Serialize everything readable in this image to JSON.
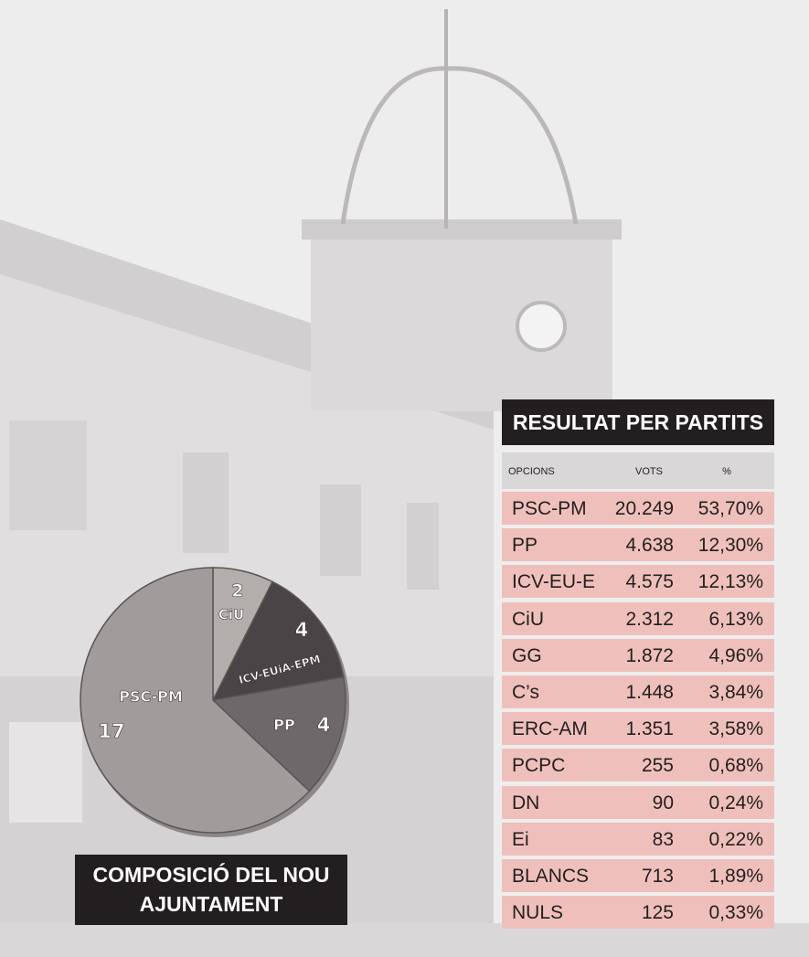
{
  "chart_data": {
    "type": "pie",
    "categories": [
      "CiU",
      "ICV-EUiA-EPM",
      "PP",
      "PSC-PM"
    ],
    "values": [
      2,
      4,
      4,
      17
    ],
    "colors": [
      "#b3adac",
      "#4a4446",
      "#6f686a",
      "#a29b9c"
    ],
    "caption": "COMPOSICIÓ DEL NOU AJUNTAMENT"
  },
  "table": {
    "title": "RESULTAT PER PARTITS",
    "header": [
      "OPCIONS",
      "VOTS",
      "%"
    ],
    "rows": [
      [
        "PSC-PM",
        "20.249",
        "53,70%"
      ],
      [
        "PP",
        "4.638",
        "12,30%"
      ],
      [
        "ICV-EU-E",
        "4.575",
        "12,13%"
      ],
      [
        "CiU",
        "2.312",
        "6,13%"
      ],
      [
        "GG",
        "1.872",
        "4,96%"
      ],
      [
        "C’s",
        "1.448",
        "3,84%"
      ],
      [
        "ERC-AM",
        "1.351",
        "3,58%"
      ],
      [
        "PCPC",
        "255",
        "0,68%"
      ],
      [
        "DN",
        "90",
        "0,24%"
      ],
      [
        "Ei",
        "83",
        "0,22%"
      ],
      [
        "BLANCS",
        "713",
        "1,89%"
      ],
      [
        "NULS",
        "125",
        "0,33%"
      ]
    ]
  }
}
